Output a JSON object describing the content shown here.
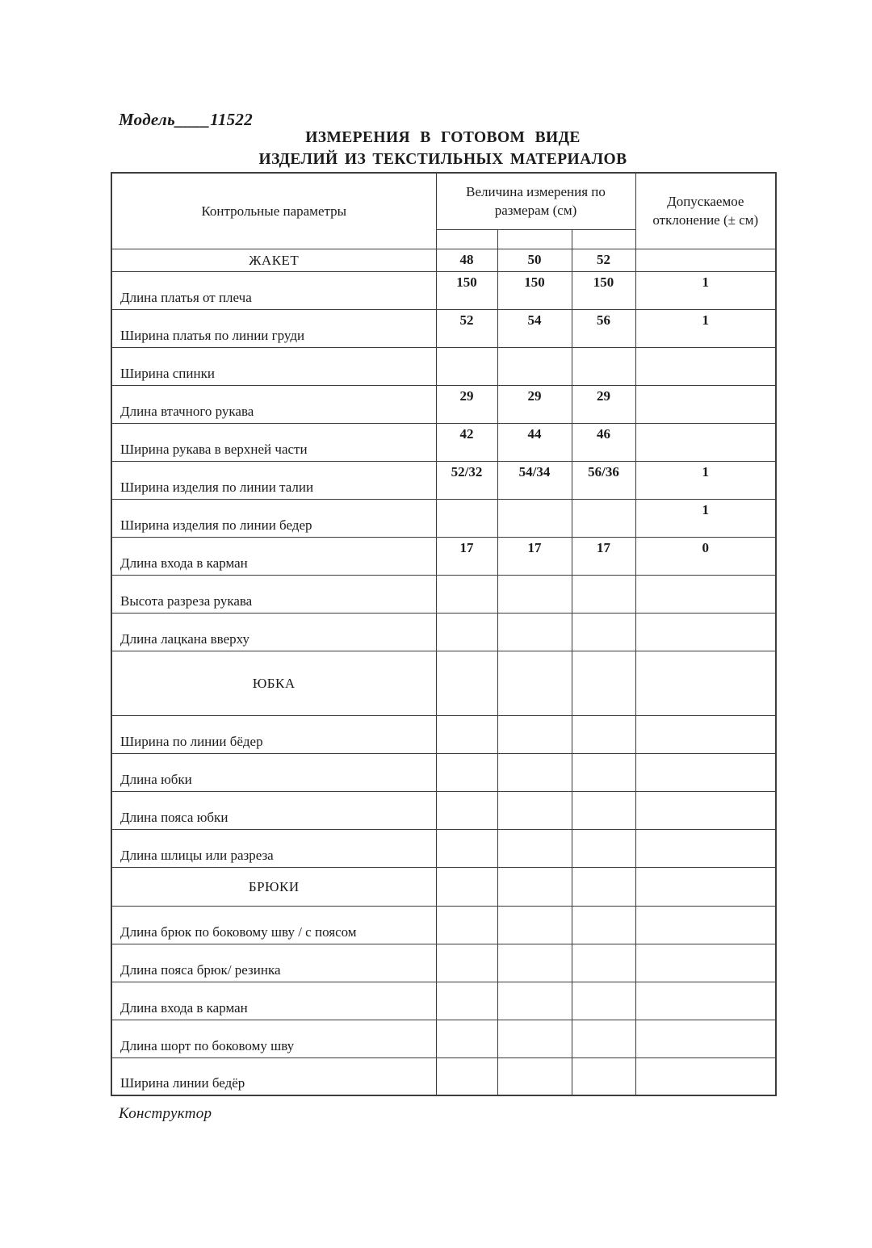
{
  "colors": {
    "ink": "#1b1b1b",
    "line": "#3d3d3d",
    "paper": "#ffffff"
  },
  "page": {
    "model_label": "Модель____11522",
    "title_line1": "ИЗМЕРЕНИЯ В ГОТОВОМ ВИДЕ",
    "title_line2": "ИЗДЕЛИЙ ИЗ ТЕКСТИЛЬНЫХ МАТЕРИАЛОВ",
    "footer": "Конструктор"
  },
  "table": {
    "headers": {
      "params": "Контрольные параметры",
      "sizes": "Величина измерения по размерам (см)",
      "tolerance": "Допускаемое отклонение (± см)"
    },
    "rows": [
      {
        "type": "jacket",
        "label": "ЖАКЕТ",
        "s1": "48",
        "s2": "50",
        "s3": "52",
        "tol": ""
      },
      {
        "type": "data",
        "label": "Длина платья от плеча",
        "s1": "150",
        "s2": "150",
        "s3": "150",
        "tol": "1"
      },
      {
        "type": "data",
        "label": "Ширина  платья по линии груди",
        "s1": "52",
        "s2": "54",
        "s3": "56",
        "tol": "1"
      },
      {
        "type": "data",
        "label": "Ширина  спинки",
        "s1": "",
        "s2": "",
        "s3": "",
        "tol": ""
      },
      {
        "type": "data",
        "label": "Длина втачного рукава",
        "s1": "29",
        "s2": "29",
        "s3": "29",
        "tol": ""
      },
      {
        "type": "data",
        "label": "Ширина рукава в верхней части",
        "s1": "42",
        "s2": "44",
        "s3": "46",
        "tol": ""
      },
      {
        "type": "data",
        "label": "Ширина изделия по линии талии",
        "s1": "52/32",
        "s2": "54/34",
        "s3": "56/36",
        "tol": "1"
      },
      {
        "type": "data",
        "label": "Ширина изделия по линии бедер",
        "s1": "",
        "s2": "",
        "s3": "",
        "tol": "1"
      },
      {
        "type": "data",
        "label": "Длина входа в карман",
        "s1": "17",
        "s2": "17",
        "s3": "17",
        "tol": "0"
      },
      {
        "type": "data",
        "label": "Высота разреза рукава",
        "s1": "",
        "s2": "",
        "s3": "",
        "tol": ""
      },
      {
        "type": "data",
        "label": "Длина лацкана вверху",
        "s1": "",
        "s2": "",
        "s3": "",
        "tol": ""
      },
      {
        "type": "skirt",
        "label": "ЮБКА",
        "s1": "",
        "s2": "",
        "s3": "",
        "tol": ""
      },
      {
        "type": "data",
        "label": "Ширина  по линии бёдер",
        "s1": "",
        "s2": "",
        "s3": "",
        "tol": ""
      },
      {
        "type": "data",
        "label": "Длина юбки",
        "s1": "",
        "s2": "",
        "s3": "",
        "tol": ""
      },
      {
        "type": "data",
        "label": "Длина пояса юбки",
        "s1": "",
        "s2": "",
        "s3": "",
        "tol": ""
      },
      {
        "type": "data",
        "label": "Длина шлицы или разреза",
        "s1": "",
        "s2": "",
        "s3": "",
        "tol": ""
      },
      {
        "type": "trousers",
        "label": "БРЮКИ",
        "s1": "",
        "s2": "",
        "s3": "",
        "tol": ""
      },
      {
        "type": "data",
        "label": "Длина брюк по  боковому шву / с поясом",
        "s1": "",
        "s2": "",
        "s3": "",
        "tol": ""
      },
      {
        "type": "data",
        "label": "Длина пояса брюк/ резинка",
        "s1": "",
        "s2": "",
        "s3": "",
        "tol": ""
      },
      {
        "type": "data",
        "label": "Длина входа в карман",
        "s1": "",
        "s2": "",
        "s3": "",
        "tol": ""
      },
      {
        "type": "data",
        "label": "Длина шорт по боковому шву",
        "s1": "",
        "s2": "",
        "s3": "",
        "tol": ""
      },
      {
        "type": "data",
        "label": "Ширина линии бедёр",
        "s1": "",
        "s2": "",
        "s3": "",
        "tol": ""
      }
    ]
  }
}
